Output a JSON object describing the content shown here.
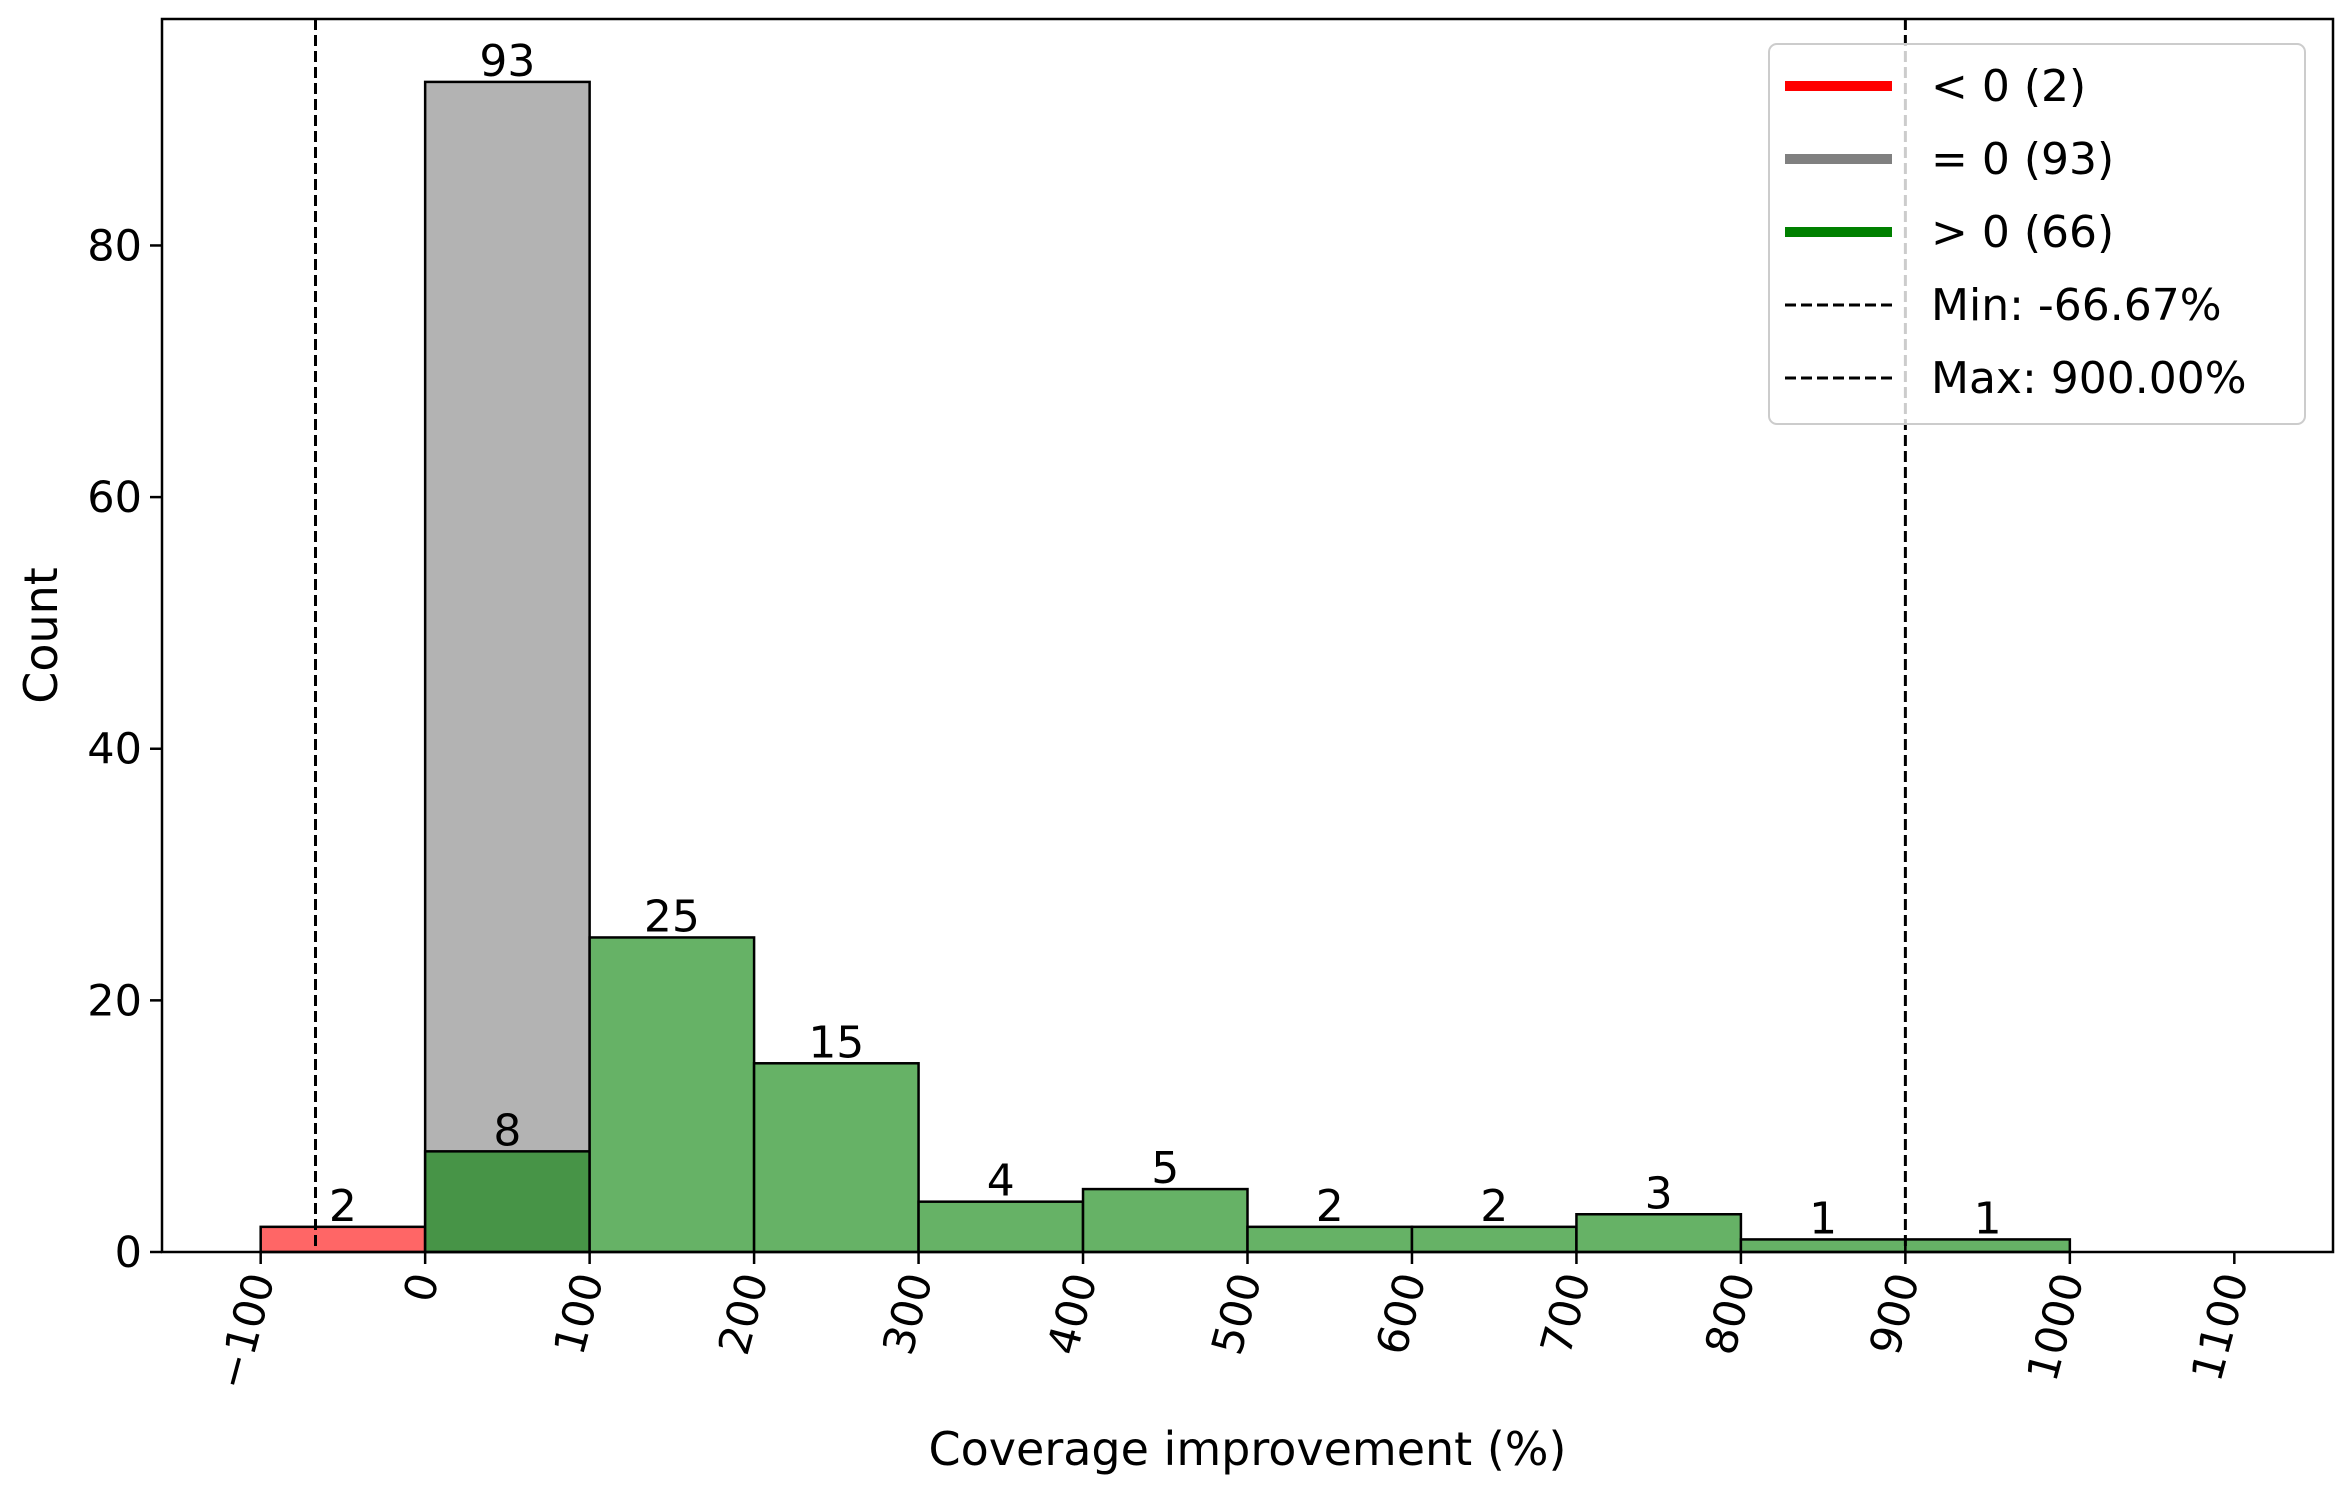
{
  "chart_data": {
    "type": "bar",
    "title": "",
    "xlabel": "Coverage improvement (%)",
    "ylabel": "Count",
    "xlim": [
      -160,
      1160
    ],
    "ylim": [
      0,
      98
    ],
    "x_ticks": [
      {
        "value": -100,
        "label": "−100"
      },
      {
        "value": 0,
        "label": "0"
      },
      {
        "value": 100,
        "label": "100"
      },
      {
        "value": 200,
        "label": "200"
      },
      {
        "value": 300,
        "label": "300"
      },
      {
        "value": 400,
        "label": "400"
      },
      {
        "value": 500,
        "label": "500"
      },
      {
        "value": 600,
        "label": "600"
      },
      {
        "value": 700,
        "label": "700"
      },
      {
        "value": 800,
        "label": "800"
      },
      {
        "value": 900,
        "label": "900"
      },
      {
        "value": 1000,
        "label": "1000"
      },
      {
        "value": 1100,
        "label": "1100"
      }
    ],
    "y_ticks": [
      {
        "value": 0,
        "label": "0"
      },
      {
        "value": 20,
        "label": "20"
      },
      {
        "value": 40,
        "label": "40"
      },
      {
        "value": 60,
        "label": "60"
      },
      {
        "value": 80,
        "label": "80"
      }
    ],
    "colors": {
      "negative_fill": "#ff6666",
      "zero_fill": "#b3b3b3",
      "positive_fill": "#66b266",
      "overlap_fill": "#479447",
      "negative_line": "#ff0000",
      "zero_line": "#808080",
      "positive_line": "#008000",
      "edge": "#000000"
    },
    "series": [
      {
        "name": "< 0",
        "fill": "negative_fill",
        "bins": [
          {
            "start": -100,
            "end": 0,
            "count": 2,
            "label": "2"
          }
        ]
      },
      {
        "name": "= 0",
        "fill": "zero_fill",
        "bins": [
          {
            "start": 0,
            "end": 100,
            "count": 93,
            "label": "93"
          }
        ]
      },
      {
        "name": "> 0",
        "fill": "positive_fill",
        "bins": [
          {
            "start": 0,
            "end": 100,
            "count": 8,
            "label": "8",
            "fill": "overlap_fill"
          },
          {
            "start": 100,
            "end": 200,
            "count": 25,
            "label": "25"
          },
          {
            "start": 200,
            "end": 300,
            "count": 15,
            "label": "15"
          },
          {
            "start": 300,
            "end": 400,
            "count": 4,
            "label": "4"
          },
          {
            "start": 400,
            "end": 500,
            "count": 5,
            "label": "5"
          },
          {
            "start": 500,
            "end": 600,
            "count": 2,
            "label": "2"
          },
          {
            "start": 600,
            "end": 700,
            "count": 2,
            "label": "2"
          },
          {
            "start": 700,
            "end": 800,
            "count": 3,
            "label": "3"
          },
          {
            "start": 800,
            "end": 900,
            "count": 1,
            "label": "1"
          },
          {
            "start": 900,
            "end": 1000,
            "count": 1,
            "label": "1"
          }
        ]
      }
    ],
    "reference_lines": [
      {
        "name": "min",
        "x": -66.67
      },
      {
        "name": "max",
        "x": 900.0
      }
    ],
    "legend": {
      "placement": "top-right",
      "entries": [
        {
          "kind": "line",
          "color": "negative_line",
          "label": "< 0 (2)"
        },
        {
          "kind": "line",
          "color": "zero_line",
          "label": "= 0 (93)"
        },
        {
          "kind": "line",
          "color": "positive_line",
          "label": "> 0 (66)"
        },
        {
          "kind": "dashed",
          "color": "edge",
          "label": "Min: -66.67%"
        },
        {
          "kind": "dashed",
          "color": "edge",
          "label": "Max: 900.00%"
        }
      ]
    }
  }
}
